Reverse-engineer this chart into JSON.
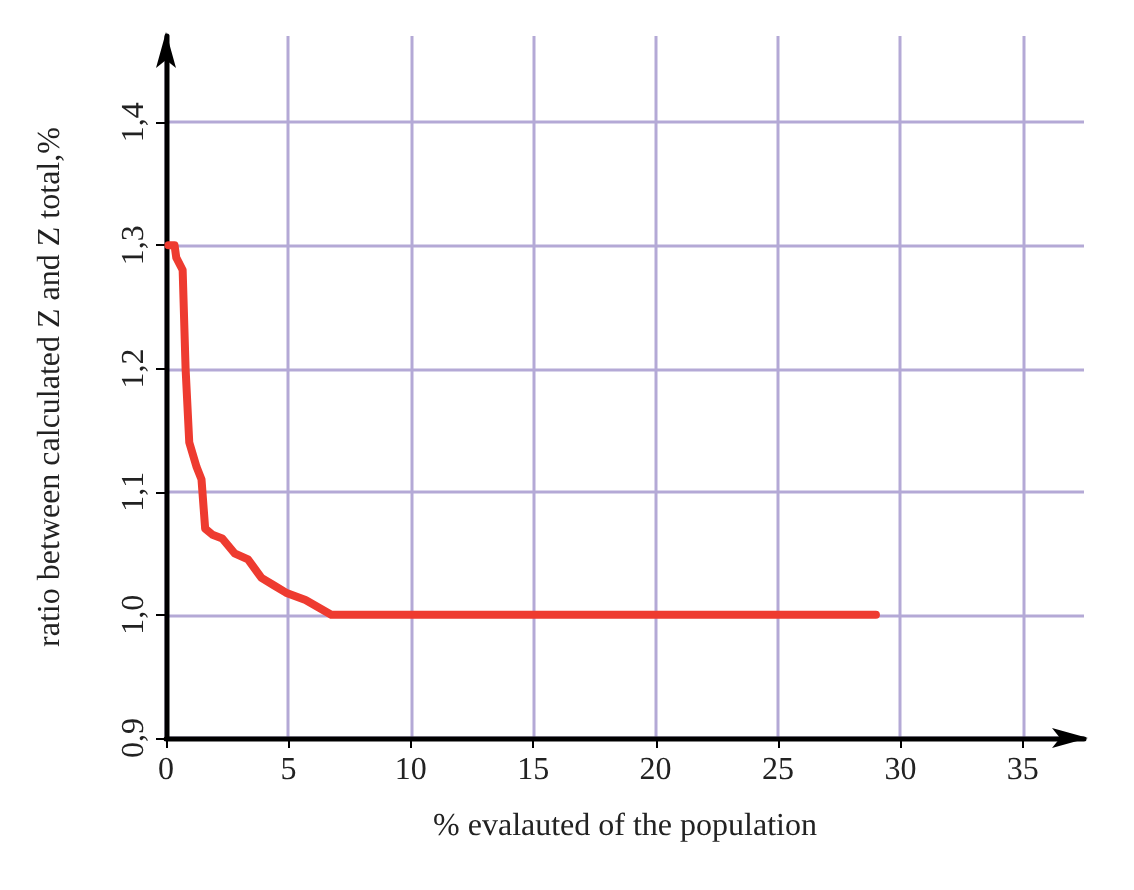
{
  "chart_data": {
    "type": "line",
    "xlabel": "% evalauted of the population",
    "ylabel": "ratio between calculated Z and Z total,%",
    "x": [
      0.1,
      0.35,
      0.42,
      0.68,
      0.8,
      0.95,
      1.25,
      1.45,
      1.6,
      1.9,
      2.3,
      2.8,
      3.35,
      3.9,
      4.4,
      4.9,
      5.7,
      6.75,
      29
    ],
    "series": [
      {
        "color": "#ee3b30",
        "values": [
          1.3,
          1.3,
          1.29,
          1.28,
          1.2,
          1.14,
          1.12,
          1.11,
          1.07,
          1.065,
          1.062,
          1.05,
          1.045,
          1.03,
          1.024,
          1.018,
          1.012,
          1.0,
          1.0
        ]
      }
    ],
    "xlim": [
      0,
      37.5
    ],
    "xticks": [
      0,
      5,
      10,
      15,
      20,
      25,
      30,
      35
    ],
    "ylim": [
      0.9,
      1.47
    ],
    "yticks": [
      {
        "value": 0.9,
        "label": "0,9"
      },
      {
        "value": 1.0,
        "label": "1,0"
      },
      {
        "value": 1.1,
        "label": "1,1"
      },
      {
        "value": 1.2,
        "label": "1,2"
      },
      {
        "value": 1.3,
        "label": "1,3"
      },
      {
        "value": 1.4,
        "label": "1,4"
      }
    ],
    "grid": true,
    "marker": "none",
    "line_style": "solid"
  }
}
